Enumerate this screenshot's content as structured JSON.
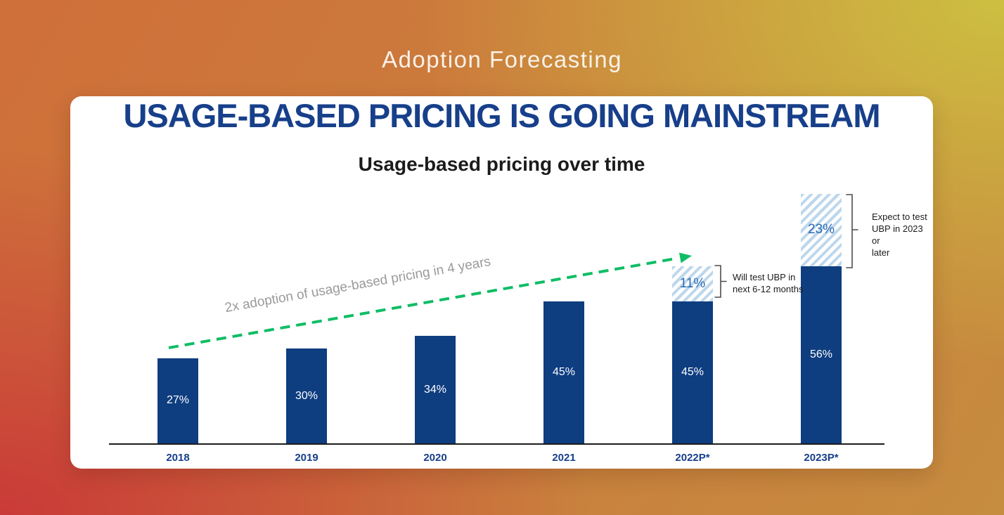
{
  "page": {
    "eyebrow": "Adoption Forecasting"
  },
  "card": {
    "headline": "USAGE-BASED PRICING IS GOING MAINSTREAM"
  },
  "chart_data": {
    "type": "bar",
    "title": "Usage-based pricing over time",
    "categories": [
      "2018",
      "2019",
      "2020",
      "2021",
      "2022P*",
      "2023P*"
    ],
    "series": [
      {
        "name": "using usage-based pricing",
        "values": [
          27,
          30,
          34,
          45,
          45,
          56
        ]
      },
      {
        "name": "projected testers (hatched)",
        "values": [
          0,
          0,
          0,
          0,
          11,
          23
        ]
      }
    ],
    "value_labels": [
      "27%",
      "30%",
      "34%",
      "45%",
      "45%",
      "56%"
    ],
    "hatch_labels": [
      "",
      "",
      "",
      "",
      "11%",
      "23%"
    ],
    "xlabel": "",
    "ylabel": "",
    "ylim": [
      0,
      100
    ],
    "grid": false,
    "legend": "none",
    "annotations": {
      "trend": {
        "text": "2x adoption of usage-based pricing in 4 years"
      },
      "bar_2022": {
        "text": "Will test UBP in\nnext 6-12 months"
      },
      "bar_2023": {
        "text": "Expect to test\nUBP in 2023 or\nlater"
      }
    }
  },
  "colors": {
    "bar": "#0e3d80",
    "hatch-stripe": "#bdd7ec",
    "hatch-text": "#2d6bb3",
    "axis": "#1c1c1c",
    "year": "#173f8a",
    "headline": "#173f8a",
    "trend-arrow": "#0fbd65",
    "trend-text": "#9a9a9a",
    "bracket": "#4c4c4c",
    "eyebrow": "#f8f1e9",
    "card": "#ffffff",
    "bg-tl": "#cf6f3a",
    "bg-tr": "#cdbf41",
    "bg-bl": "#ca3a38",
    "bg-br": "#c68c3f"
  }
}
